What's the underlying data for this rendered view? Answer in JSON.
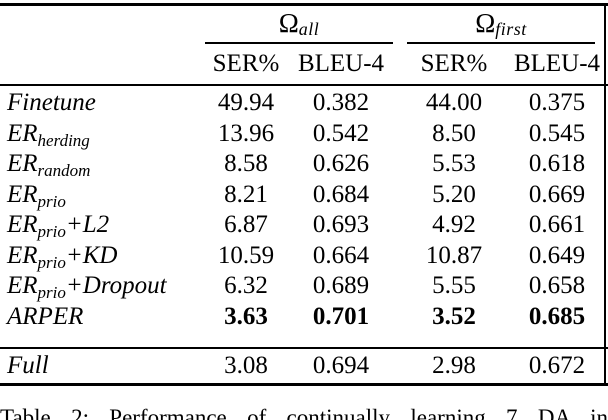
{
  "table": {
    "col_groups": [
      {
        "symbol": "Ω",
        "subscript": "all"
      },
      {
        "symbol": "Ω",
        "subscript": "first"
      }
    ],
    "sub_headers": [
      "SER%",
      "BLEU-4",
      "SER%",
      "BLEU-4"
    ],
    "rows": [
      {
        "label": "Finetune",
        "subscript": "",
        "suffix": "",
        "bold": false,
        "values": [
          "49.94",
          "0.382",
          "44.00",
          "0.375"
        ]
      },
      {
        "label": "ER",
        "subscript": "herding",
        "suffix": "",
        "bold": false,
        "values": [
          "13.96",
          "0.542",
          "8.50",
          "0.545"
        ]
      },
      {
        "label": "ER",
        "subscript": "random",
        "suffix": "",
        "bold": false,
        "values": [
          "8.58",
          "0.626",
          "5.53",
          "0.618"
        ]
      },
      {
        "label": "ER",
        "subscript": "prio",
        "suffix": "",
        "bold": false,
        "values": [
          "8.21",
          "0.684",
          "5.20",
          "0.669"
        ]
      },
      {
        "label": "ER",
        "subscript": "prio",
        "suffix": "+L2",
        "bold": false,
        "values": [
          "6.87",
          "0.693",
          "4.92",
          "0.661"
        ]
      },
      {
        "label": "ER",
        "subscript": "prio",
        "suffix": "+KD",
        "bold": false,
        "values": [
          "10.59",
          "0.664",
          "10.87",
          "0.649"
        ]
      },
      {
        "label": "ER",
        "subscript": "prio",
        "suffix": "+Dropout",
        "bold": false,
        "values": [
          "6.32",
          "0.689",
          "5.55",
          "0.658"
        ]
      },
      {
        "label": "ARPER",
        "subscript": "",
        "suffix": "",
        "bold": true,
        "values": [
          "3.63",
          "0.701",
          "3.52",
          "0.685"
        ]
      }
    ],
    "footer_row": {
      "label": "Full",
      "values": [
        "3.08",
        "0.694",
        "2.98",
        "0.672"
      ]
    }
  },
  "caption": "Table 2: Performance of continually learning 7 DA in",
  "colors": {
    "text": "#000000",
    "background": "#ffffff",
    "rule": "#000000"
  }
}
